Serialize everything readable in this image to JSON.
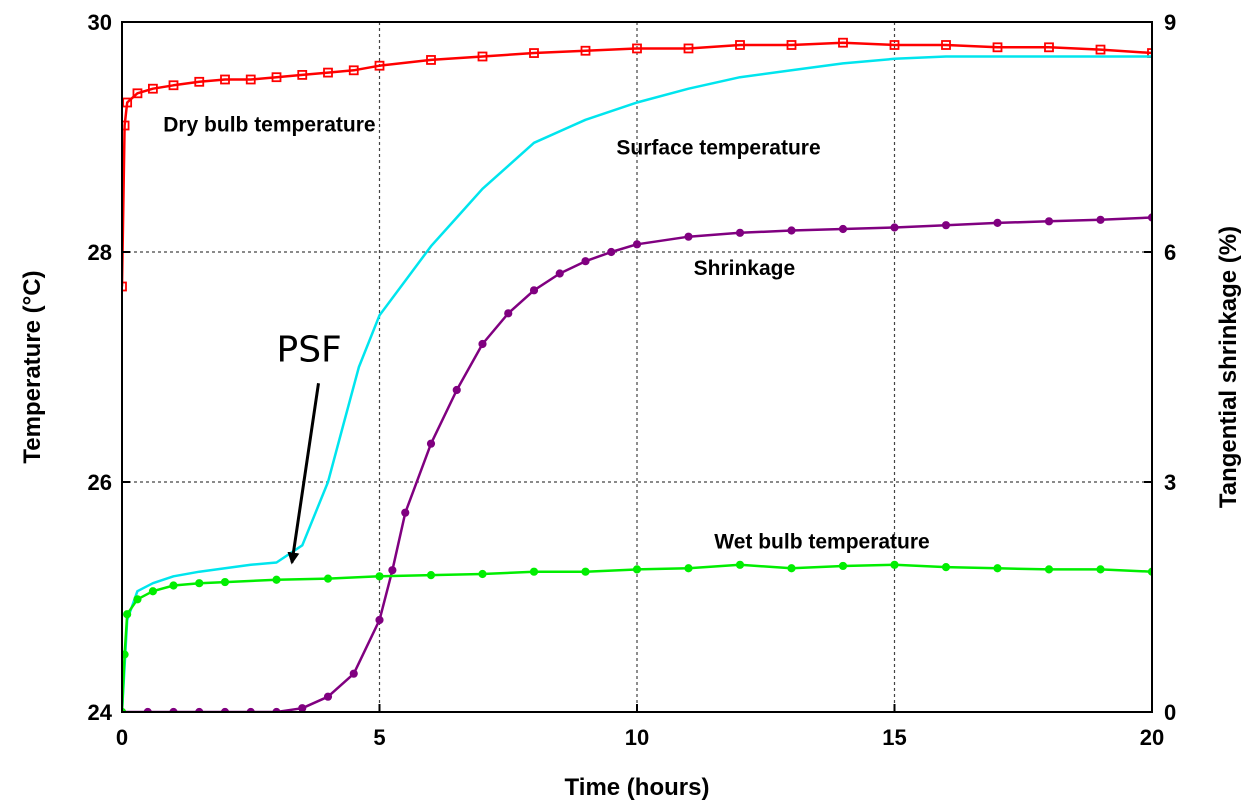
{
  "chart_data": {
    "type": "line",
    "xlabel": "Time (hours)",
    "ylabel": "Temperature (°C)",
    "y2label": "Tangential shrinkage (%)",
    "xlim": [
      0,
      20
    ],
    "ylim": [
      24,
      30
    ],
    "y2lim": [
      0,
      9
    ],
    "x_ticks": [
      "0",
      "5",
      "10",
      "15",
      "20"
    ],
    "y_ticks": [
      "24",
      "26",
      "28",
      "30"
    ],
    "y2_ticks": [
      "0",
      "3",
      "6",
      "9"
    ],
    "grid": true,
    "series": [
      {
        "name": "Dry bulb temperature",
        "axis": "left",
        "color": "#ff0000",
        "marker": "square",
        "x": [
          0,
          0.05,
          0.1,
          0.3,
          0.6,
          1,
          1.5,
          2,
          2.5,
          3,
          3.5,
          4,
          4.5,
          5,
          6,
          7,
          8,
          9,
          10,
          11,
          12,
          13,
          14,
          15,
          16,
          17,
          18,
          19,
          20
        ],
        "y": [
          27.7,
          29.1,
          29.3,
          29.38,
          29.42,
          29.45,
          29.48,
          29.5,
          29.5,
          29.52,
          29.54,
          29.56,
          29.58,
          29.62,
          29.67,
          29.7,
          29.73,
          29.75,
          29.77,
          29.77,
          29.8,
          29.8,
          29.82,
          29.8,
          29.8,
          29.78,
          29.78,
          29.76,
          29.73
        ]
      },
      {
        "name": "Surface temperature",
        "axis": "left",
        "color": "#00e5ee",
        "marker": "none",
        "x": [
          0,
          0.1,
          0.3,
          0.6,
          1,
          1.5,
          2,
          2.5,
          3,
          3.5,
          4,
          4.3,
          4.6,
          5,
          5.5,
          6,
          6.5,
          7,
          7.5,
          8,
          9,
          10,
          11,
          12,
          13,
          14,
          15,
          16,
          17,
          18,
          19,
          20
        ],
        "y": [
          24.0,
          24.8,
          25.05,
          25.12,
          25.18,
          25.22,
          25.25,
          25.28,
          25.3,
          25.45,
          26.0,
          26.5,
          27.0,
          27.45,
          27.75,
          28.05,
          28.3,
          28.55,
          28.75,
          28.95,
          29.15,
          29.3,
          29.42,
          29.52,
          29.58,
          29.64,
          29.68,
          29.7,
          29.7,
          29.7,
          29.7,
          29.7
        ]
      },
      {
        "name": "Shrinkage",
        "axis": "right",
        "color": "#800080",
        "marker": "circle",
        "x": [
          0,
          0.5,
          1,
          1.5,
          2,
          2.5,
          3,
          3.5,
          4,
          4.5,
          5,
          5.25,
          5.5,
          6,
          6.5,
          7,
          7.5,
          8,
          8.5,
          9,
          9.5,
          10,
          11,
          12,
          13,
          14,
          15,
          16,
          17,
          18,
          19,
          20
        ],
        "y": [
          0,
          0,
          0,
          0,
          0,
          0,
          0,
          0.05,
          0.2,
          0.5,
          1.2,
          1.85,
          2.6,
          3.5,
          4.2,
          4.8,
          5.2,
          5.5,
          5.72,
          5.88,
          6.0,
          6.1,
          6.2,
          6.25,
          6.28,
          6.3,
          6.32,
          6.35,
          6.38,
          6.4,
          6.42,
          6.45
        ]
      },
      {
        "name": "Wet bulb temperature",
        "axis": "left",
        "color": "#00ee00",
        "marker": "circle",
        "x": [
          0,
          0.05,
          0.1,
          0.3,
          0.6,
          1,
          1.5,
          2,
          3,
          4,
          5,
          6,
          7,
          8,
          9,
          10,
          11,
          12,
          13,
          14,
          15,
          16,
          17,
          18,
          19,
          20
        ],
        "y": [
          24.0,
          24.5,
          24.85,
          24.98,
          25.05,
          25.1,
          25.12,
          25.13,
          25.15,
          25.16,
          25.18,
          25.19,
          25.2,
          25.22,
          25.22,
          25.24,
          25.25,
          25.28,
          25.25,
          25.27,
          25.28,
          25.26,
          25.25,
          25.24,
          25.24,
          25.22
        ]
      }
    ],
    "annotations": [
      {
        "text": "Dry bulb temperature",
        "x": 0.8,
        "y": 29.05
      },
      {
        "text": "Surface temperature",
        "x": 9.6,
        "y": 28.85
      },
      {
        "text": "Shrinkage",
        "x": 11.1,
        "y": 27.8
      },
      {
        "text": "Wet bulb temperature",
        "x": 11.5,
        "y": 25.42
      },
      {
        "text": "PSF",
        "x": 3.0,
        "y": 27.05,
        "arrow_to": [
          3.3,
          25.3
        ]
      }
    ]
  }
}
